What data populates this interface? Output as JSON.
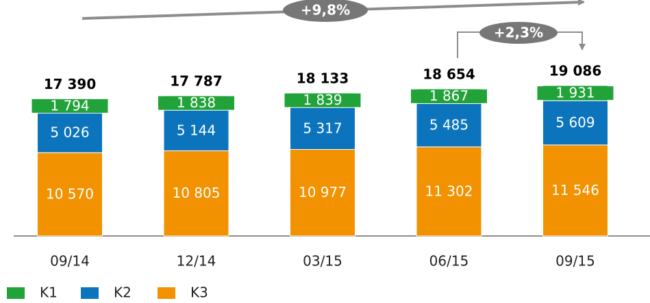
{
  "chart_data": {
    "type": "stacked_bar",
    "categories": [
      "09/14",
      "12/14",
      "03/15",
      "06/15",
      "09/15"
    ],
    "series": [
      {
        "name": "K1",
        "color": "#21a33a",
        "values": [
          1794,
          1838,
          1839,
          1867,
          1931
        ],
        "value_labels": [
          "1 794",
          "1 838",
          "1 839",
          "1 867",
          "1 931"
        ]
      },
      {
        "name": "K2",
        "color": "#0b74bd",
        "values": [
          5026,
          5144,
          5317,
          5485,
          5609
        ],
        "value_labels": [
          "5 026",
          "5 144",
          "5 317",
          "5 485",
          "5 609"
        ]
      },
      {
        "name": "K3",
        "color": "#f39200",
        "values": [
          10570,
          10805,
          10977,
          11302,
          11546
        ],
        "value_labels": [
          "10 570",
          "10 805",
          "10 977",
          "11 302",
          "11 546"
        ]
      }
    ],
    "totals": {
      "values": [
        17390,
        17787,
        18133,
        18654,
        19086
      ],
      "value_labels": [
        "17 390",
        "17 787",
        "18 133",
        "18 654",
        "19 086"
      ]
    },
    "annotations": [
      "+9,8%",
      "+2,3%"
    ]
  }
}
